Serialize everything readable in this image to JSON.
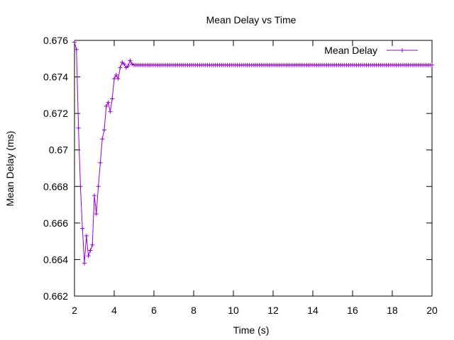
{
  "chart_data": {
    "type": "line",
    "title": "Mean Delay vs Time",
    "xlabel": "Time (s)",
    "ylabel": "Mean Delay (ms)",
    "xlim": [
      2,
      20
    ],
    "ylim": [
      0.662,
      0.676
    ],
    "xticks": [
      "2",
      "4",
      "6",
      "8",
      "10",
      "12",
      "14",
      "16",
      "18",
      "20"
    ],
    "yticks": [
      "0.662",
      "0.664",
      "0.666",
      "0.668",
      "0.67",
      "0.672",
      "0.674",
      "0.676"
    ],
    "legend_position": "top-right",
    "grid": false,
    "marker": "plus",
    "series": [
      {
        "name": "Mean Delay",
        "color": "#9400d3",
        "x": [
          2.0,
          2.1,
          2.2,
          2.3,
          2.4,
          2.5,
          2.6,
          2.7,
          2.8,
          2.9,
          3.0,
          3.1,
          3.2,
          3.3,
          3.4,
          3.5,
          3.6,
          3.7,
          3.8,
          3.9,
          4.0,
          4.1,
          4.2,
          4.3,
          4.4,
          4.5,
          4.6,
          4.7,
          4.8,
          4.9,
          5.0
        ],
        "y": [
          0.6759,
          0.6755,
          0.6712,
          0.668,
          0.6657,
          0.6638,
          0.6653,
          0.6642,
          0.6645,
          0.6648,
          0.6675,
          0.6665,
          0.668,
          0.6693,
          0.6706,
          0.6711,
          0.6724,
          0.6726,
          0.6721,
          0.6728,
          0.6739,
          0.6741,
          0.6739,
          0.6745,
          0.6748,
          0.6747,
          0.6745,
          0.6746,
          0.6749,
          0.6747,
          0.67465
        ],
        "steady_value": 0.67465,
        "steady_from": 5.0,
        "steady_to": 20.0,
        "steady_step": 0.1
      }
    ]
  }
}
